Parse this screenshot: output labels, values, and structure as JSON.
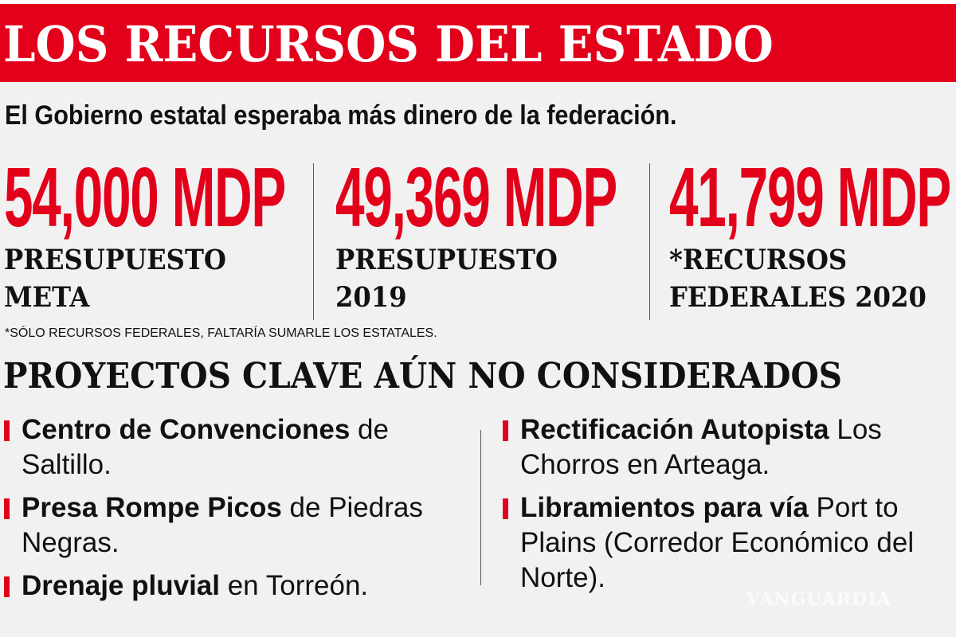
{
  "header": {
    "title": "LOS RECURSOS DEL ESTADO",
    "subtitle": "El Gobierno estatal esperaba más dinero de la federación."
  },
  "colors": {
    "accent": "#e2001a",
    "background": "#f1f1f1"
  },
  "stats": [
    {
      "value": "54,000 MDP",
      "label_line1": "PRESUPUESTO",
      "label_line2": "META"
    },
    {
      "value": "49,369 MDP",
      "label_line1": "PRESUPUESTO",
      "label_line2": "2019"
    },
    {
      "value": "41,799 MDP",
      "label_line1": "*RECURSOS",
      "label_line2": "FEDERALES 2020"
    }
  ],
  "footnote": "*SÓLO RECURSOS FEDERALES, FALTARÍA SUMARLE LOS ESTATALES.",
  "projects": {
    "title": "PROYECTOS CLAVE AÚN NO CONSIDERADOS",
    "left": [
      {
        "bold": "Centro de Convenciones",
        "rest": " de Saltillo."
      },
      {
        "bold": "Presa Rompe Picos",
        "rest": " de Piedras Negras."
      },
      {
        "bold": "Drenaje pluvial",
        "rest": " en Torreón."
      }
    ],
    "right": [
      {
        "bold": "Rectificación Autopista",
        "rest": " Los Chorros en Arteaga."
      },
      {
        "bold": "Libramientos para vía",
        "rest": " Port to Plains (Corredor Económico del Norte)."
      }
    ]
  },
  "watermark": "VANGUARDIA"
}
